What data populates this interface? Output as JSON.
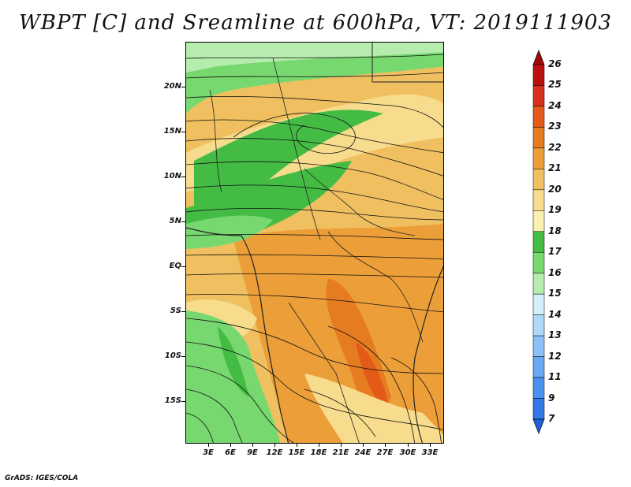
{
  "title": "WBPT [C] and Sreamline at 600hPa, VT: 2019111903",
  "footer": "GrADS: IGES/COLA",
  "map": {
    "lat_labels": [
      "20N",
      "15N",
      "10N",
      "5N",
      "EQ",
      "5S",
      "10S",
      "15S"
    ],
    "lon_labels": [
      "3E",
      "6E",
      "9E",
      "12E",
      "15E",
      "18E",
      "21E",
      "24E",
      "27E",
      "30E",
      "33E"
    ],
    "lat_range": [
      -20,
      24.5
    ],
    "lon_range": [
      0,
      35
    ]
  },
  "colorbar": {
    "labels": [
      "7",
      "9",
      "11",
      "12",
      "13",
      "14",
      "15",
      "16",
      "17",
      "18",
      "19",
      "20",
      "21",
      "22",
      "23",
      "24",
      "25",
      "26"
    ],
    "colors": [
      "#2060d8",
      "#3278e6",
      "#4a90ee",
      "#6aa8f2",
      "#8cc0f6",
      "#b0d8fa",
      "#d4f0f8",
      "#b6ecae",
      "#78d870",
      "#44bc44",
      "#faf0b0",
      "#f6dc8c",
      "#f0c060",
      "#ec9e38",
      "#e67c22",
      "#e45a18",
      "#d8301a",
      "#bc1010",
      "#a00808"
    ]
  }
}
